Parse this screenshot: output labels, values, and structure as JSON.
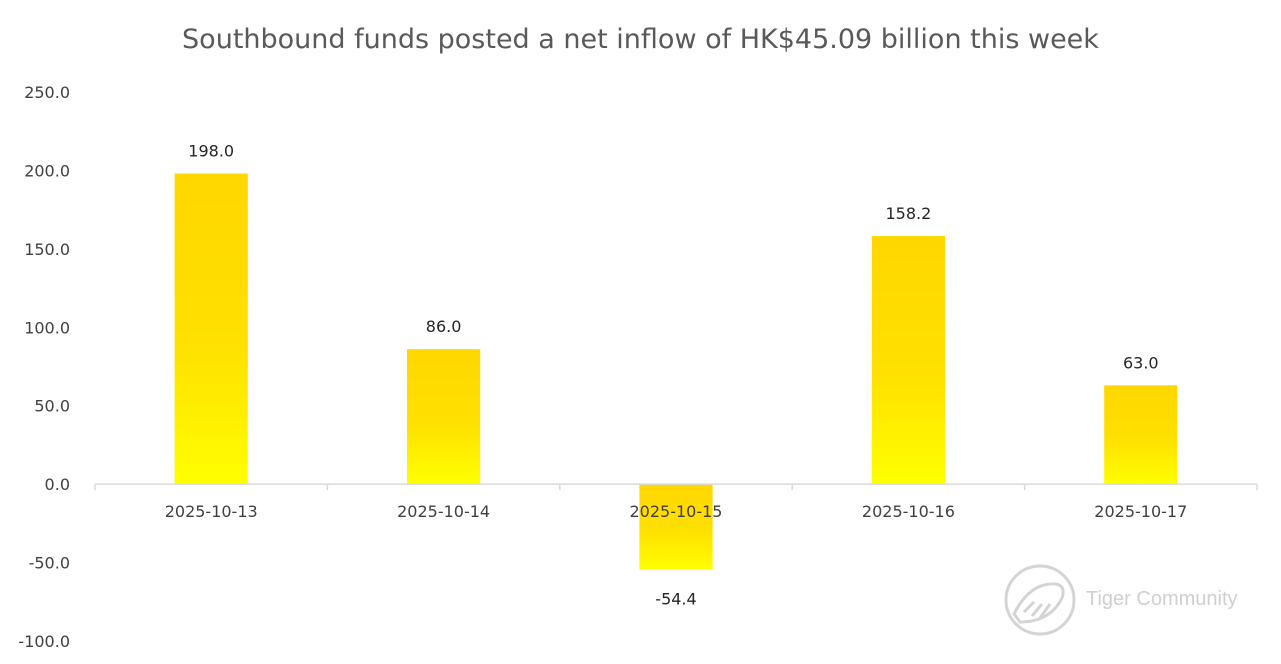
{
  "chart_data": {
    "type": "bar",
    "title": "Southbound funds posted a net inflow of HK$45.09 billion this week",
    "categories": [
      "2025-10-13",
      "2025-10-14",
      "2025-10-15",
      "2025-10-16",
      "2025-10-17"
    ],
    "values": [
      198.0,
      86.0,
      -54.4,
      158.2,
      63.0
    ],
    "data_labels": [
      "198.0",
      "86.0",
      "-54.4",
      "158.2",
      "63.0"
    ],
    "ylim": [
      -100,
      250
    ],
    "yticks": [
      250,
      200,
      150,
      100,
      50,
      0,
      -50,
      -100
    ],
    "ytick_labels": [
      "250.0",
      "200.0",
      "150.0",
      "100.0",
      "50.0",
      "0.0",
      "-50.0",
      "-100.0"
    ],
    "grid": false,
    "legend": "none",
    "bar_color_top": "#FFD700",
    "bar_color_bottom": "#FFFF00"
  },
  "watermark": {
    "text": "Tiger Community"
  }
}
